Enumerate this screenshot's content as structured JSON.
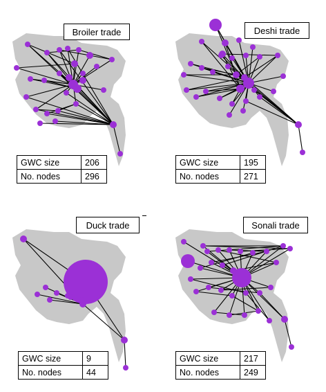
{
  "colors": {
    "land": "#c8c8c8",
    "node": "#9b30d6",
    "edge": "#000000"
  },
  "panels": [
    {
      "id": "broiler",
      "title": "Broiler trade",
      "stats": [
        {
          "label": "GWC size",
          "value": "206"
        },
        {
          "label": "No. nodes",
          "value": "296"
        }
      ]
    },
    {
      "id": "deshi",
      "title": "Deshi trade",
      "stats": [
        {
          "label": "GWC size",
          "value": "195"
        },
        {
          "label": "No. nodes",
          "value": "271"
        }
      ]
    },
    {
      "id": "duck",
      "title": "Duck trade",
      "stats": [
        {
          "label": "GWC size",
          "value": "9"
        },
        {
          "label": "No. nodes",
          "value": "44"
        }
      ]
    },
    {
      "id": "sonali",
      "title": "Sonali trade",
      "stats": [
        {
          "label": "GWC size",
          "value": "217"
        },
        {
          "label": "No. nodes",
          "value": "249"
        }
      ]
    }
  ]
}
